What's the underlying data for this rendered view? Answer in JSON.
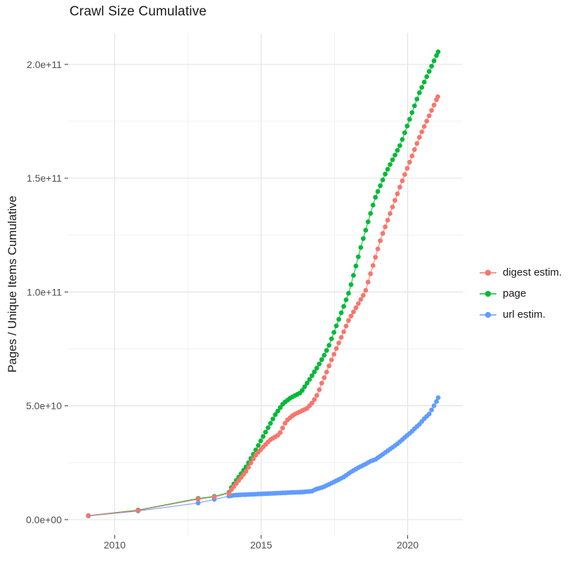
{
  "title": "Crawl Size Cumulative",
  "y_axis": {
    "label": "Pages / Unique Items Cumulative",
    "tick_labels": [
      "0.0e+00",
      "5.0e+10",
      "1.0e+11",
      "1.5e+11",
      "2.0e+11"
    ],
    "tick_values_e9": [
      0,
      50,
      100,
      150,
      200
    ],
    "minor_values_e9": [
      25,
      75,
      125,
      175
    ],
    "range_e9": [
      -6.8,
      213.8
    ]
  },
  "x_axis": {
    "tick_labels": [
      "2010",
      "2015",
      "2020"
    ],
    "tick_values": [
      2010,
      2015,
      2020
    ],
    "minor_values": [
      2012.5,
      2017.5
    ],
    "range": [
      2008.41,
      2021.88
    ]
  },
  "legend": {
    "items": [
      {
        "label": "digest estim.",
        "color": "#F8766D"
      },
      {
        "label": "page",
        "color": "#00BA38"
      },
      {
        "label": "url estim.",
        "color": "#619CFF"
      }
    ]
  },
  "colors": {
    "background": "#ffffff",
    "grid_major": "#e4e4e4",
    "grid_minor": "#f0f0f0",
    "tick_text": "#4d4d4d",
    "tick_mark": "#333333"
  },
  "chart_data": {
    "type": "scatter",
    "title": "Crawl Size Cumulative",
    "xlabel": "",
    "ylabel": "Pages / Unique Items Cumulative",
    "x_unit": "year (decimal)",
    "y_unit": "items, values given in units of 1e9 (e.g. 205.5 = 2.055e+11)",
    "xlim": [
      2008.41,
      2021.88
    ],
    "ylim_e9": [
      -6.8,
      213.8
    ],
    "grid": true,
    "legend_position": "right",
    "point_cadence": "sparse early crawls, then roughly monthly points interpolated between knots",
    "draw_order": [
      "page",
      "url estim.",
      "digest estim."
    ],
    "series": [
      {
        "name": "page",
        "color": "#00BA38",
        "early_points_e9": [
          [
            2009.1,
            1.8
          ],
          [
            2010.8,
            4.2
          ],
          [
            2012.85,
            9.3
          ],
          [
            2013.4,
            10.2
          ]
        ],
        "knots_e9": [
          [
            2013.9,
            12.0
          ],
          [
            2014.0,
            14.5
          ],
          [
            2014.25,
            19.0
          ],
          [
            2014.5,
            23.5
          ],
          [
            2014.79,
            30.0
          ],
          [
            2015.0,
            35.0
          ],
          [
            2015.26,
            41.0
          ],
          [
            2015.5,
            46.5
          ],
          [
            2015.75,
            51.0
          ],
          [
            2016.0,
            53.5
          ],
          [
            2016.35,
            55.8
          ],
          [
            2016.62,
            61.0
          ],
          [
            2016.93,
            67.2
          ],
          [
            2017.17,
            72.7
          ],
          [
            2017.3,
            76.0
          ],
          [
            2018.0,
            100.0
          ],
          [
            2018.45,
            122.0
          ],
          [
            2018.88,
            141.0
          ],
          [
            2019.24,
            152.0
          ],
          [
            2019.76,
            165.0
          ],
          [
            2020.38,
            187.0
          ],
          [
            2021.04,
            205.5
          ]
        ]
      },
      {
        "name": "url estim.",
        "color": "#619CFF",
        "early_points_e9": [
          [
            2009.1,
            1.6
          ],
          [
            2010.8,
            3.8
          ],
          [
            2012.85,
            7.3
          ],
          [
            2013.4,
            8.9
          ]
        ],
        "knots_e9": [
          [
            2013.9,
            10.3
          ],
          [
            2014.1,
            10.8
          ],
          [
            2014.5,
            11.0
          ],
          [
            2015.0,
            11.3
          ],
          [
            2015.5,
            11.6
          ],
          [
            2016.0,
            11.9
          ],
          [
            2016.4,
            12.1
          ],
          [
            2016.75,
            12.5
          ],
          [
            2016.85,
            13.3
          ],
          [
            2017.1,
            14.2
          ],
          [
            2017.35,
            15.7
          ],
          [
            2017.6,
            17.3
          ],
          [
            2017.83,
            18.8
          ],
          [
            2018.07,
            21.0
          ],
          [
            2018.31,
            22.8
          ],
          [
            2018.55,
            24.3
          ],
          [
            2018.72,
            25.6
          ],
          [
            2018.91,
            26.5
          ],
          [
            2019.15,
            28.7
          ],
          [
            2019.38,
            30.8
          ],
          [
            2019.62,
            33.0
          ],
          [
            2019.79,
            34.8
          ],
          [
            2019.98,
            37.0
          ],
          [
            2020.1,
            38.2
          ],
          [
            2020.22,
            39.8
          ],
          [
            2020.38,
            41.6
          ],
          [
            2020.57,
            44.4
          ],
          [
            2020.74,
            46.5
          ],
          [
            2020.88,
            49.6
          ],
          [
            2020.98,
            51.8
          ],
          [
            2021.04,
            53.6
          ]
        ]
      },
      {
        "name": "digest estim.",
        "color": "#F8766D",
        "early_points_e9": [
          [
            2009.1,
            1.7
          ],
          [
            2010.8,
            4.0
          ],
          [
            2012.85,
            9.0
          ],
          [
            2013.4,
            10.0
          ]
        ],
        "knots_e9": [
          [
            2013.9,
            11.5
          ],
          [
            2014.0,
            13.5
          ],
          [
            2014.25,
            17.5
          ],
          [
            2014.5,
            21.5
          ],
          [
            2014.79,
            28.0
          ],
          [
            2015.0,
            31.0
          ],
          [
            2015.3,
            35.0
          ],
          [
            2015.62,
            37.5
          ],
          [
            2015.86,
            43.4
          ],
          [
            2016.1,
            46.0
          ],
          [
            2016.34,
            47.5
          ],
          [
            2016.58,
            49.0
          ],
          [
            2016.77,
            51.8
          ],
          [
            2016.93,
            55.2
          ],
          [
            2017.05,
            59.5
          ],
          [
            2017.22,
            64.4
          ],
          [
            2017.38,
            69.6
          ],
          [
            2018.0,
            88.0
          ],
          [
            2018.55,
            100.0
          ],
          [
            2019.1,
            124.0
          ],
          [
            2019.76,
            147.0
          ],
          [
            2020.4,
            168.0
          ],
          [
            2021.03,
            185.8
          ]
        ]
      }
    ]
  }
}
